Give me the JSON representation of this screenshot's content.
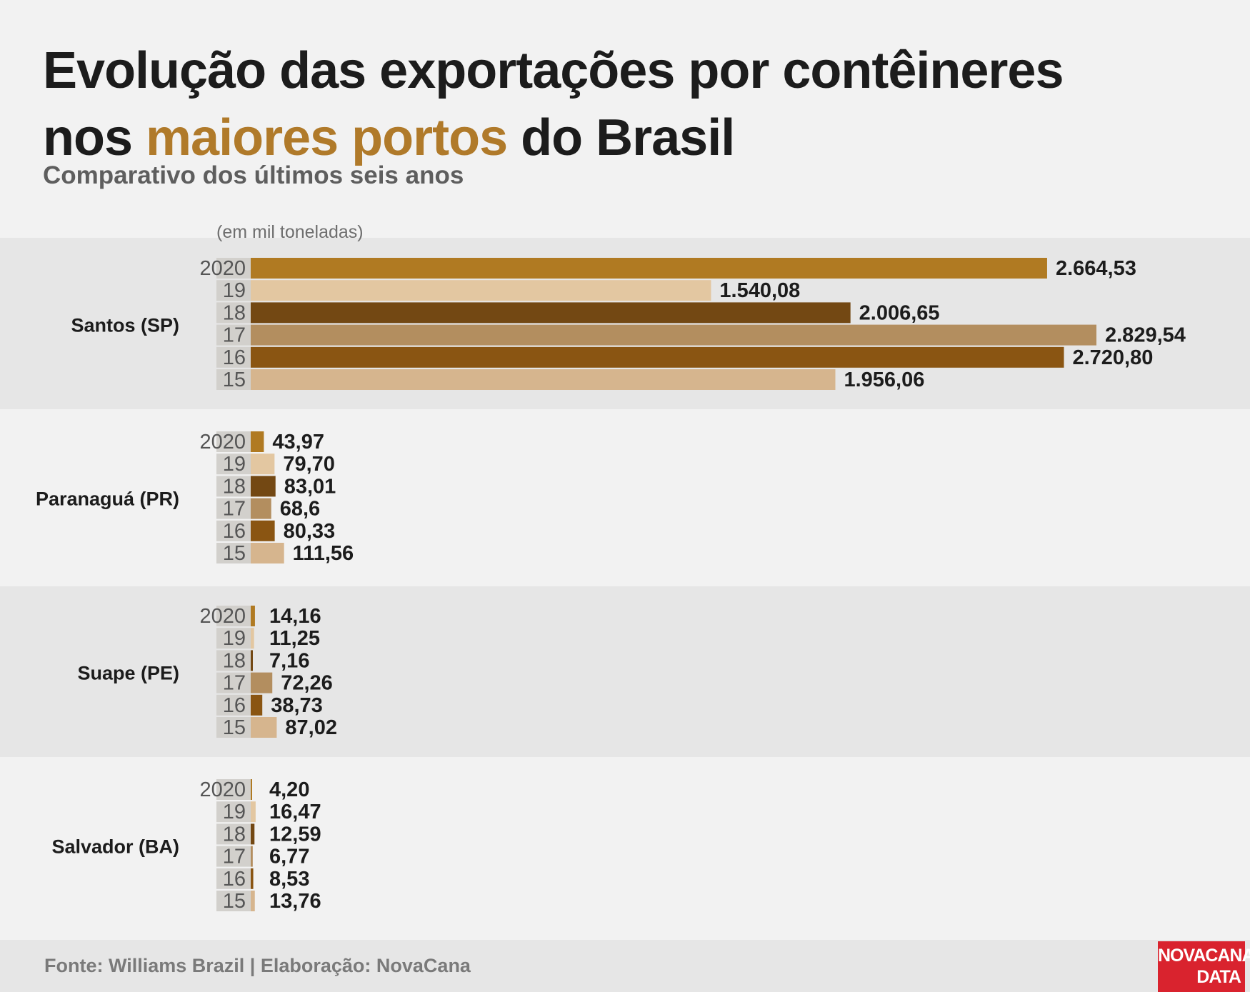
{
  "title": {
    "part1": "Evolução das exportações por contêineres",
    "part2": "nos ",
    "highlight": "maiores portos",
    "part3": " do Brasil"
  },
  "subtitle": "Comparativo dos últimos seis anos",
  "unit_note": "(em mil toneladas)",
  "footer": {
    "source": "Fonte: Williams Brazil | Elaboração: NovaCana",
    "logo_line1": "NOVACANA",
    "logo_line2": "DATA"
  },
  "colors": {
    "highlight": "#b07a2a",
    "background": "#f2f2f2",
    "band_dark": "#e6e6e6",
    "logo": "#d9232e",
    "year_colors": [
      "#b07a22",
      "#e3c7a1",
      "#734813",
      "#b38e5f",
      "#8a5512",
      "#d6b58e"
    ]
  },
  "chart_data": {
    "type": "bar",
    "orientation": "horizontal",
    "unit": "mil toneladas",
    "year_labels": [
      "2020",
      "19",
      "18",
      "17",
      "16",
      "15"
    ],
    "groups": [
      {
        "name": "Santos (SP)",
        "values": [
          2664.53,
          1540.08,
          2006.65,
          2829.54,
          2720.8,
          1956.06
        ],
        "labels": [
          "2.664,53",
          "1.540,08",
          "2.006,65",
          "2.829,54",
          "2.720,80",
          "1.956,06"
        ]
      },
      {
        "name": "Paranaguá (PR)",
        "values": [
          43.97,
          79.7,
          83.01,
          68.6,
          80.33,
          111.56
        ],
        "labels": [
          "43,97",
          "79,70",
          "83,01",
          "68,6",
          "80,33",
          "111,56"
        ]
      },
      {
        "name": "Suape (PE)",
        "values": [
          14.16,
          11.25,
          7.16,
          72.26,
          38.73,
          87.02
        ],
        "labels": [
          "14,16",
          "11,25",
          "7,16",
          "72,26",
          "38,73",
          "87,02"
        ]
      },
      {
        "name": "Salvador (BA)",
        "values": [
          4.2,
          16.47,
          12.59,
          6.77,
          8.53,
          13.76
        ],
        "labels": [
          "4,20",
          "16,47",
          "12,59",
          "6,77",
          "8,53",
          "13,76"
        ]
      }
    ],
    "xlim": [
      0,
      2829.54
    ]
  }
}
